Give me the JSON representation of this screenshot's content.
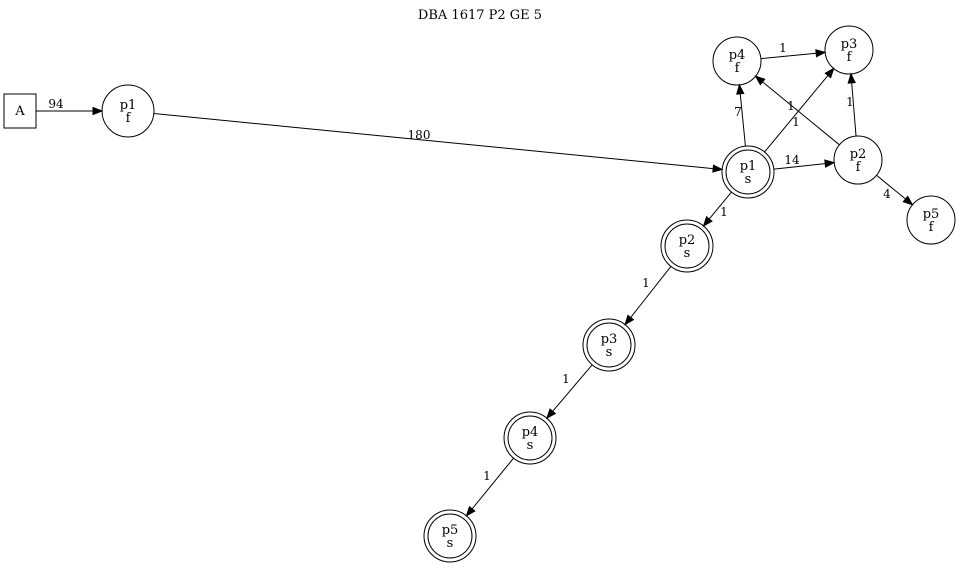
{
  "title": "DBA 1617 P2 GE 5",
  "nodes": [
    {
      "id": "A",
      "label": "A",
      "shape": "box"
    },
    {
      "id": "p1f",
      "label": [
        "p1",
        "f"
      ],
      "shape": "circle"
    },
    {
      "id": "p1s",
      "label": [
        "p1",
        "s"
      ],
      "shape": "doublecircle"
    },
    {
      "id": "p4f",
      "label": [
        "p4",
        "f"
      ],
      "shape": "circle"
    },
    {
      "id": "p3f",
      "label": [
        "p3",
        "f"
      ],
      "shape": "circle"
    },
    {
      "id": "p2f",
      "label": [
        "p2",
        "f"
      ],
      "shape": "circle"
    },
    {
      "id": "p5f",
      "label": [
        "p5",
        "f"
      ],
      "shape": "circle"
    },
    {
      "id": "p2s",
      "label": [
        "p2",
        "s"
      ],
      "shape": "doublecircle"
    },
    {
      "id": "p3s",
      "label": [
        "p3",
        "s"
      ],
      "shape": "doublecircle"
    },
    {
      "id": "p4s",
      "label": [
        "p4",
        "s"
      ],
      "shape": "doublecircle"
    },
    {
      "id": "p5s",
      "label": [
        "p5",
        "s"
      ],
      "shape": "doublecircle"
    }
  ],
  "edges": [
    {
      "from": "A",
      "to": "p1f",
      "label": "94"
    },
    {
      "from": "p1f",
      "to": "p1s",
      "label": "180"
    },
    {
      "from": "p1s",
      "to": "p4f",
      "label": "7"
    },
    {
      "from": "p1s",
      "to": "p3f",
      "label": "1"
    },
    {
      "from": "p1s",
      "to": "p2f",
      "label": "14"
    },
    {
      "from": "p4f",
      "to": "p3f",
      "label": "1"
    },
    {
      "from": "p2f",
      "to": "p4f",
      "label": "1"
    },
    {
      "from": "p2f",
      "to": "p3f",
      "label": "1"
    },
    {
      "from": "p2f",
      "to": "p5f",
      "label": "4"
    },
    {
      "from": "p1s",
      "to": "p2s",
      "label": "1"
    },
    {
      "from": "p2s",
      "to": "p3s",
      "label": "1"
    },
    {
      "from": "p3s",
      "to": "p4s",
      "label": "1"
    },
    {
      "from": "p4s",
      "to": "p5s",
      "label": "1"
    }
  ]
}
